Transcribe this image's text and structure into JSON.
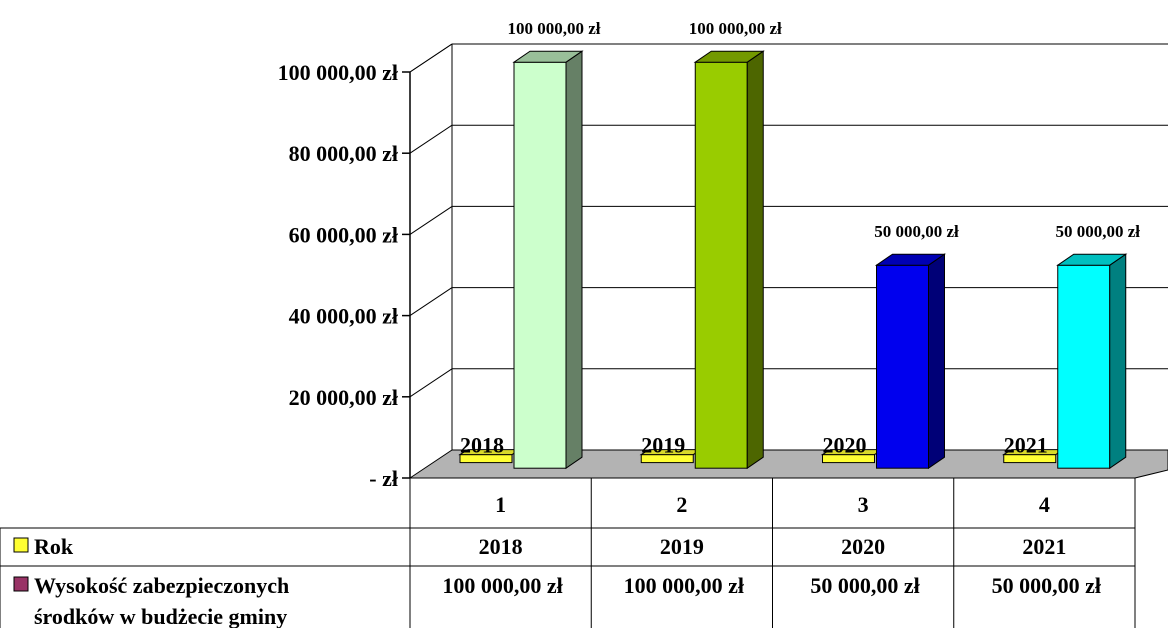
{
  "chart_data": {
    "type": "bar",
    "categories": [
      "1",
      "2",
      "3",
      "4"
    ],
    "ylim": [
      0,
      100000
    ],
    "yticks": [
      0,
      20000,
      40000,
      60000,
      80000,
      100000
    ],
    "ytick_labels": [
      "-      zł",
      "20 000,00 zł",
      "40 000,00 zł",
      "60 000,00 zł",
      "80 000,00 zł",
      "100 000,00 zł"
    ],
    "grid": true,
    "series": [
      {
        "name": "Rok",
        "values": [
          2018,
          2019,
          2020,
          2021
        ],
        "labels": [
          "2018",
          "2019",
          "2020",
          "2021"
        ],
        "color": "#ffff33"
      },
      {
        "name": "Wysokość zabezpieczonych środków w budżecie gminy",
        "name_lines": [
          "Wysokość zabezpieczonych",
          "środków w budżecie gminy"
        ],
        "values": [
          100000,
          100000,
          50000,
          50000
        ],
        "labels": [
          "100 000,00 zł",
          "100 000,00 zł",
          "50 000,00 zł",
          "50 000,00 zł"
        ],
        "colors": [
          "#ccffcc",
          "#99cc00",
          "#0000ee",
          "#00ffff"
        ],
        "legend_color": "#993366"
      }
    ]
  }
}
